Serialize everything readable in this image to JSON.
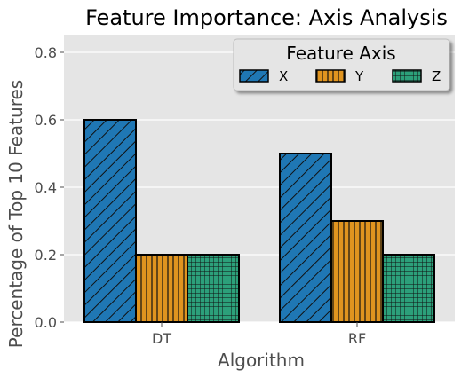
{
  "chart_data": {
    "type": "bar",
    "title": "Feature Importance: Axis Analysis",
    "xlabel": "Algorithm",
    "ylabel": "Percentage of Top 10 Features",
    "categories": [
      "DT",
      "RF"
    ],
    "ylim": [
      0,
      0.85
    ],
    "yticks": [
      "0.0",
      "0.2",
      "0.4",
      "0.6",
      "0.8"
    ],
    "grid": true,
    "legend": {
      "title": "Feature Axis",
      "placement": "top-right"
    },
    "series": [
      {
        "name": "X",
        "values": [
          0.6,
          0.5
        ],
        "color": "#1f77b4",
        "hatch": "diagonal"
      },
      {
        "name": "Y",
        "values": [
          0.2,
          0.3
        ],
        "color": "#e0941f",
        "hatch": "vertical"
      },
      {
        "name": "Z",
        "values": [
          0.2,
          0.2
        ],
        "color": "#2ca07a",
        "hatch": "grid"
      }
    ]
  }
}
